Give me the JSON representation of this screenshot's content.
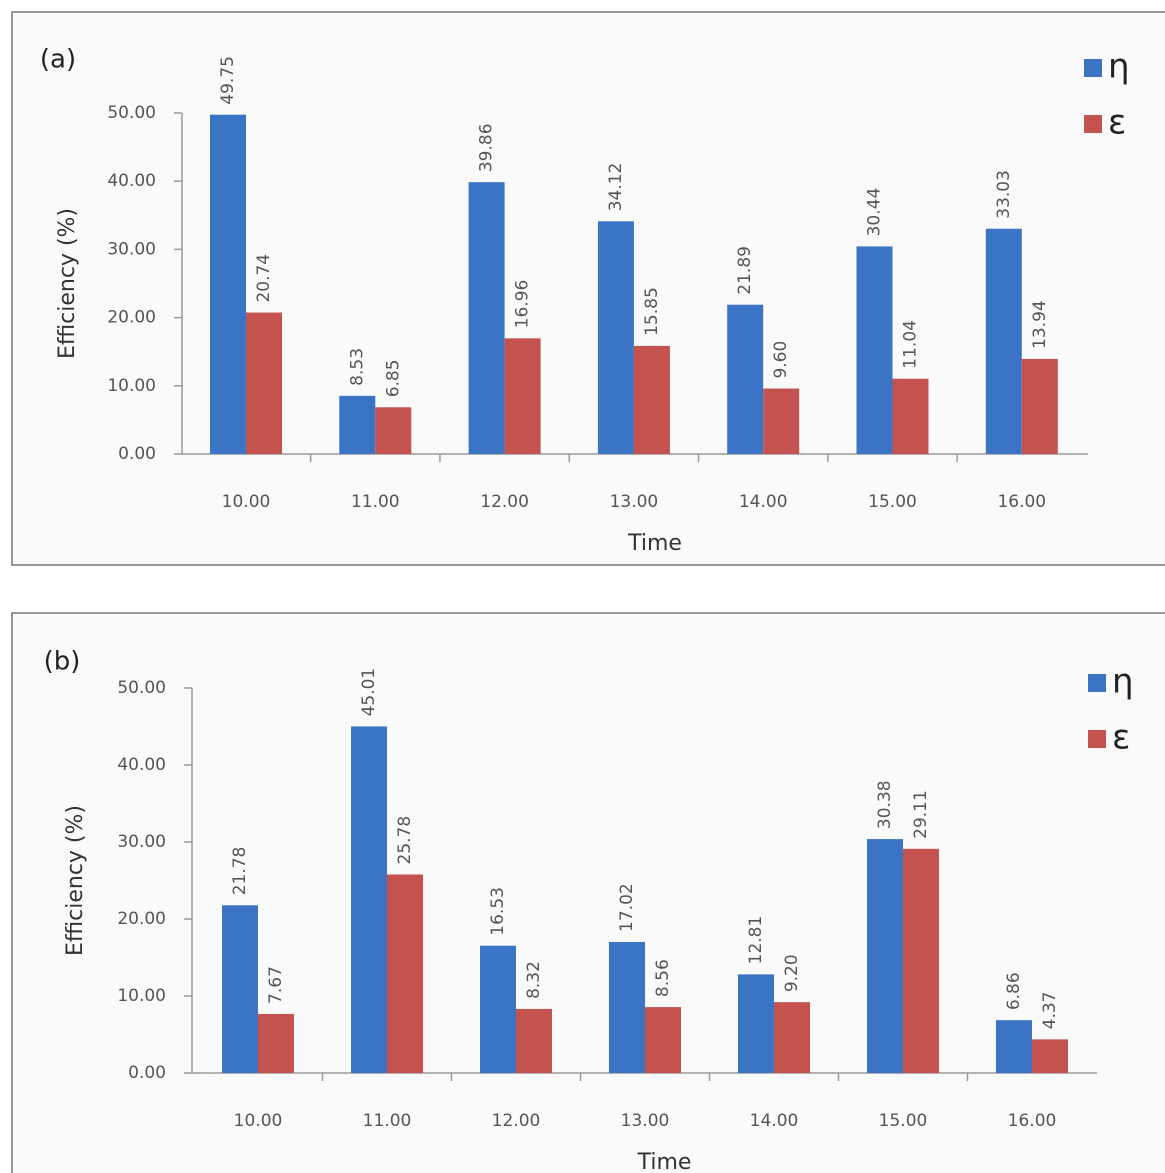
{
  "chart_data": [
    {
      "type": "bar",
      "title": "(a)",
      "xlabel": "Time",
      "ylabel": "Efficiency (%)",
      "categories": [
        "10.00",
        "11.00",
        "12.00",
        "13.00",
        "14.00",
        "15.00",
        "16.00"
      ],
      "series": [
        {
          "name": "η",
          "color": "#3b74c5",
          "values": [
            49.75,
            8.53,
            39.86,
            34.12,
            21.89,
            30.44,
            33.03
          ],
          "value_labels": [
            "49.75",
            "8.53",
            "39.86",
            "34.12",
            "21.89",
            "30.44",
            "33.03"
          ]
        },
        {
          "name": "ε",
          "color": "#c4524e",
          "values": [
            20.74,
            6.85,
            16.96,
            15.85,
            9.6,
            11.04,
            13.94
          ],
          "value_labels": [
            "20.74",
            "6.85",
            "16.96",
            "15.85",
            "9.60",
            "11.04",
            "13.94"
          ]
        }
      ],
      "ylim": [
        0,
        50
      ],
      "yticks": [
        {
          "value": 0,
          "label": "0.00"
        },
        {
          "value": 10,
          "label": "10.00"
        },
        {
          "value": 20,
          "label": "20.00"
        },
        {
          "value": 30,
          "label": "30.00"
        },
        {
          "value": 40,
          "label": "40.00"
        },
        {
          "value": 50,
          "label": "50.00"
        }
      ],
      "legend": "upper right"
    },
    {
      "type": "bar",
      "title": "(b)",
      "xlabel": "Time",
      "ylabel": "Efficiency (%)",
      "categories": [
        "10.00",
        "11.00",
        "12.00",
        "13.00",
        "14.00",
        "15.00",
        "16.00"
      ],
      "series": [
        {
          "name": "η",
          "color": "#3b74c5",
          "values": [
            21.78,
            45.01,
            16.53,
            17.02,
            12.81,
            30.38,
            6.86
          ],
          "value_labels": [
            "21.78",
            "45.01",
            "16.53",
            "17.02",
            "12.81",
            "30.38",
            "6.86"
          ]
        },
        {
          "name": "ε",
          "color": "#c4524e",
          "values": [
            7.67,
            25.78,
            8.32,
            8.56,
            9.2,
            29.11,
            4.37
          ],
          "value_labels": [
            "7.67",
            "25.78",
            "8.32",
            "8.56",
            "9.20",
            "29.11",
            "4.37"
          ]
        }
      ],
      "ylim": [
        0,
        50
      ],
      "yticks": [
        {
          "value": 0,
          "label": "0.00"
        },
        {
          "value": 10,
          "label": "10.00"
        },
        {
          "value": 20,
          "label": "20.00"
        },
        {
          "value": 30,
          "label": "30.00"
        },
        {
          "value": 40,
          "label": "40.00"
        },
        {
          "value": 50,
          "label": "50.00"
        }
      ],
      "legend": "upper right"
    }
  ]
}
